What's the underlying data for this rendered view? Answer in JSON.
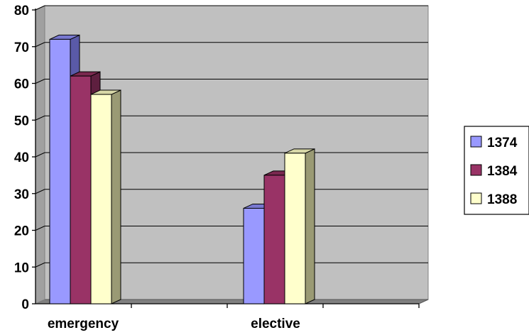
{
  "chart_data": {
    "type": "bar",
    "style": "3d-clustered-column",
    "categories": [
      "emergency",
      "elective"
    ],
    "series": [
      {
        "name": "1374",
        "values": [
          72,
          26
        ],
        "color": "#9999ff",
        "side": "#5a5aa8",
        "top": "#7878d0"
      },
      {
        "name": "1384",
        "values": [
          62,
          35
        ],
        "color": "#993366",
        "side": "#5e1f3f",
        "top": "#7a284f"
      },
      {
        "name": "1388",
        "values": [
          57,
          41
        ],
        "color": "#ffffcc",
        "side": "#9a9a74",
        "top": "#d8d8a8"
      }
    ],
    "title": "",
    "xlabel": "",
    "ylabel": "",
    "ylim": [
      0,
      80
    ],
    "y_ticks": [
      "0",
      "10",
      "20",
      "30",
      "40",
      "50",
      "60",
      "70",
      "80"
    ],
    "grid": true,
    "legend_position": "right",
    "plot_background": "#c0c0c0"
  }
}
